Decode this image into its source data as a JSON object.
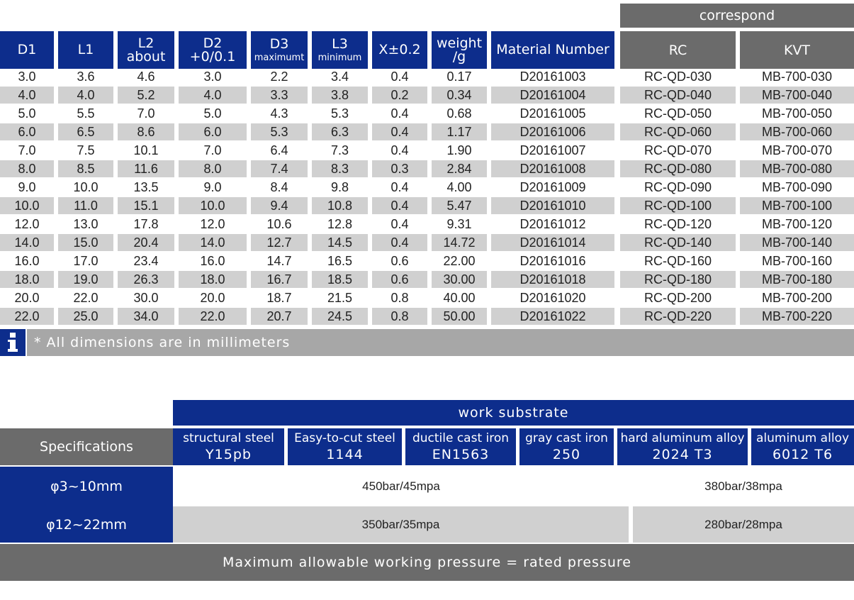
{
  "table": {
    "correspond_label": "correspond",
    "headers": {
      "d1": "D1",
      "l1": "L1",
      "l2": {
        "line1": "L2",
        "line2": "about"
      },
      "d2": {
        "line1": "D2",
        "line2": "+0/0.1"
      },
      "d3": {
        "line1": "D3",
        "line2": "maximumt"
      },
      "l3": {
        "line1": "L3",
        "line2": "minimum"
      },
      "x": "X±0.2",
      "weight": {
        "line1": "weight",
        "line2": "/g"
      },
      "material": "Material Number",
      "rc": "RC",
      "kvt": "KVT"
    },
    "rows": [
      [
        "3.0",
        "3.6",
        "4.6",
        "3.0",
        "2.2",
        "3.4",
        "0.4",
        "0.17",
        "D20161003",
        "RC-QD-030",
        "MB-700-030"
      ],
      [
        "4.0",
        "4.0",
        "5.2",
        "4.0",
        "3.3",
        "3.8",
        "0.2",
        "0.34",
        "D20161004",
        "RC-QD-040",
        "MB-700-040"
      ],
      [
        "5.0",
        "5.5",
        "7.0",
        "5.0",
        "4.3",
        "5.3",
        "0.4",
        "0.68",
        "D20161005",
        "RC-QD-050",
        "MB-700-050"
      ],
      [
        "6.0",
        "6.5",
        "8.6",
        "6.0",
        "5.3",
        "6.3",
        "0.4",
        "1.17",
        "D20161006",
        "RC-QD-060",
        "MB-700-060"
      ],
      [
        "7.0",
        "7.5",
        "10.1",
        "7.0",
        "6.4",
        "7.3",
        "0.4",
        "1.90",
        "D20161007",
        "RC-QD-070",
        "MB-700-070"
      ],
      [
        "8.0",
        "8.5",
        "11.6",
        "8.0",
        "7.4",
        "8.3",
        "0.3",
        "2.84",
        "D20161008",
        "RC-QD-080",
        "MB-700-080"
      ],
      [
        "9.0",
        "10.0",
        "13.5",
        "9.0",
        "8.4",
        "9.8",
        "0.4",
        "4.00",
        "D20161009",
        "RC-QD-090",
        "MB-700-090"
      ],
      [
        "10.0",
        "11.0",
        "15.1",
        "10.0",
        "9.4",
        "10.8",
        "0.4",
        "5.47",
        "D20161010",
        "RC-QD-100",
        "MB-700-100"
      ],
      [
        "12.0",
        "13.0",
        "17.8",
        "12.0",
        "10.6",
        "12.8",
        "0.4",
        "9.31",
        "D20161012",
        "RC-QD-120",
        "MB-700-120"
      ],
      [
        "14.0",
        "15.0",
        "20.4",
        "14.0",
        "12.7",
        "14.5",
        "0.4",
        "14.72",
        "D20161014",
        "RC-QD-140",
        "MB-700-140"
      ],
      [
        "16.0",
        "17.0",
        "23.4",
        "16.0",
        "14.7",
        "16.5",
        "0.6",
        "22.00",
        "D20161016",
        "RC-QD-160",
        "MB-700-160"
      ],
      [
        "18.0",
        "19.0",
        "26.3",
        "18.0",
        "16.7",
        "18.5",
        "0.6",
        "30.00",
        "D20161018",
        "RC-QD-180",
        "MB-700-180"
      ],
      [
        "20.0",
        "22.0",
        "30.0",
        "20.0",
        "18.7",
        "21.5",
        "0.8",
        "40.00",
        "D20161020",
        "RC-QD-200",
        "MB-700-200"
      ],
      [
        "22.0",
        "25.0",
        "34.0",
        "22.0",
        "20.7",
        "24.5",
        "0.8",
        "50.00",
        "D20161022",
        "RC-QD-220",
        "MB-700-220"
      ]
    ],
    "note": "* All dimensions are in millimeters",
    "info_icon": "info-icon"
  },
  "pressure_table": {
    "work_substrate_label": "work substrate",
    "specifications_label": "Specifications",
    "substrates": [
      {
        "name": "structural steel",
        "grade": "Y15pb"
      },
      {
        "name": "Easy-to-cut steel",
        "grade": "1144"
      },
      {
        "name": "ductile cast iron",
        "grade": "EN1563"
      },
      {
        "name": "gray cast iron",
        "grade": "250"
      },
      {
        "name": "hard aluminum alloy",
        "grade": "2024 T3"
      },
      {
        "name": "aluminum alloy",
        "grade": "6012 T6"
      }
    ],
    "specs": [
      {
        "label": "φ3~10mm",
        "main": "450bar/45mpa",
        "alu": "380bar/38mpa"
      },
      {
        "label": "φ12~22mm",
        "main": "350bar/35mpa",
        "alu": "280bar/28mpa"
      }
    ],
    "footer": "Maximum allowable working pressure = rated pressure"
  },
  "colors": {
    "navy": "#0d2d8c",
    "grey_dark": "#6b6b6b",
    "grey_light": "#d0d0d0",
    "note_grey": "#a7a7a7"
  }
}
